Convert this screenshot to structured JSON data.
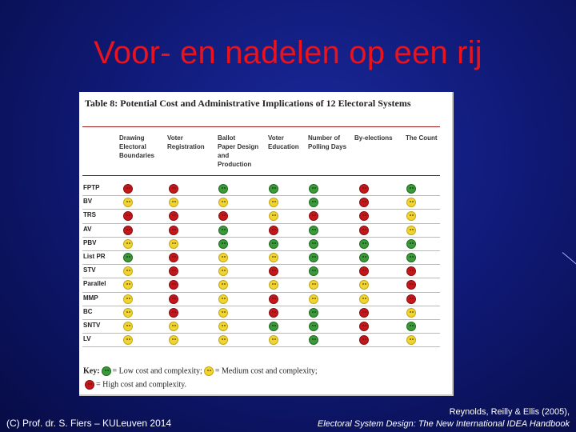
{
  "slide": {
    "title": "Voor- en nadelen op een rij"
  },
  "table": {
    "title": "Table 8: Potential Cost and Administrative Implications of 12 Electoral Systems",
    "columns": [
      "Drawing\nElectoral\nBoundaries",
      "Voter\nRegistration",
      "Ballot\nPaper Design\nand\nProduction",
      "Voter\nEducation",
      "Number of\nPolling Days",
      "By-elections",
      "The Count"
    ],
    "rows": [
      {
        "label": "FPTP",
        "cells": [
          "r",
          "r",
          "g",
          "g",
          "g",
          "r",
          "g"
        ]
      },
      {
        "label": "BV",
        "cells": [
          "y",
          "y",
          "y",
          "y",
          "g",
          "r",
          "y"
        ]
      },
      {
        "label": "TRS",
        "cells": [
          "r",
          "r",
          "r",
          "y",
          "r",
          "r",
          "y"
        ]
      },
      {
        "label": "AV",
        "cells": [
          "r",
          "r",
          "g",
          "r",
          "g",
          "r",
          "y"
        ]
      },
      {
        "label": "PBV",
        "cells": [
          "y",
          "y",
          "g",
          "g",
          "g",
          "g",
          "g"
        ]
      },
      {
        "label": "List PR",
        "cells": [
          "g",
          "r",
          "y",
          "y",
          "g",
          "g",
          "g"
        ]
      },
      {
        "label": "STV",
        "cells": [
          "y",
          "r",
          "y",
          "r",
          "g",
          "r",
          "r"
        ]
      },
      {
        "label": "Parallel",
        "cells": [
          "y",
          "r",
          "y",
          "y",
          "y",
          "y",
          "r"
        ]
      },
      {
        "label": "MMP",
        "cells": [
          "y",
          "r",
          "y",
          "r",
          "y",
          "y",
          "r"
        ]
      },
      {
        "label": "BC",
        "cells": [
          "y",
          "r",
          "y",
          "r",
          "g",
          "r",
          "y"
        ]
      },
      {
        "label": "SNTV",
        "cells": [
          "y",
          "y",
          "y",
          "g",
          "g",
          "r",
          "g"
        ]
      },
      {
        "label": "LV",
        "cells": [
          "y",
          "y",
          "y",
          "y",
          "g",
          "r",
          "y"
        ]
      }
    ],
    "key": {
      "label": "Key:",
      "low": "= Low cost and complexity;",
      "medium": "= Medium cost and complexity;",
      "high": "= High cost and complexity."
    },
    "colors": {
      "low": "#3a9a3a",
      "medium": "#f2d430",
      "high": "#c4171c"
    }
  },
  "footer": {
    "left": "(C) Prof. dr. S. Fiers – KULeuven 2014",
    "right_line1": "Reynolds, Reilly & Ellis (2005),",
    "right_line2": "Electoral System Design: The New International IDEA Handbook"
  }
}
